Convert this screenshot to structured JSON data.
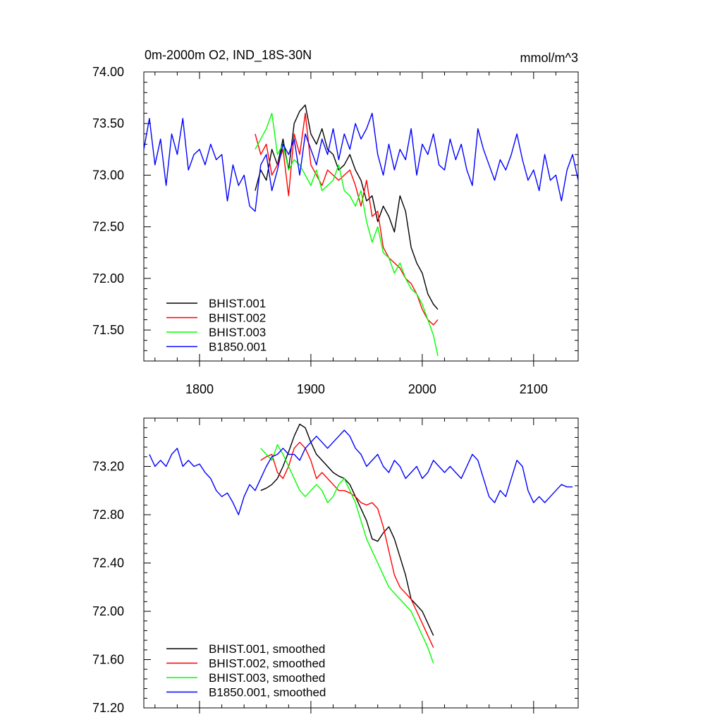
{
  "chart_data": [
    {
      "type": "line",
      "title_left": "0m-2000m O2, IND_18S-30N",
      "title_right": "mmol/m^3",
      "xlim": [
        1750,
        2140
      ],
      "ylim": [
        71.2,
        74.0
      ],
      "x_ticks": [
        1800,
        1900,
        2000,
        2100
      ],
      "y_ticks": [
        71.5,
        72.0,
        72.5,
        73.0,
        73.5,
        74.0
      ],
      "y_tick_labels": [
        "71.50",
        "72.00",
        "72.50",
        "73.00",
        "73.50",
        "74.00"
      ],
      "x_tick_labels": [
        "1800",
        "1900",
        "2000",
        "2100"
      ],
      "legend_position": "bottom-left",
      "series": [
        {
          "name": "BHIST.001",
          "color": "#000000",
          "x": [
            1850,
            1855,
            1860,
            1865,
            1870,
            1875,
            1880,
            1885,
            1890,
            1895,
            1900,
            1905,
            1910,
            1915,
            1920,
            1925,
            1930,
            1935,
            1940,
            1945,
            1950,
            1955,
            1960,
            1965,
            1970,
            1975,
            1980,
            1985,
            1990,
            1995,
            2000,
            2005,
            2010,
            2014
          ],
          "y": [
            72.85,
            73.05,
            72.95,
            73.25,
            73.1,
            73.35,
            73.05,
            73.5,
            73.62,
            73.68,
            73.4,
            73.3,
            73.45,
            73.25,
            73.2,
            73.05,
            73.1,
            73.2,
            73.05,
            72.95,
            72.75,
            72.8,
            72.55,
            72.7,
            72.6,
            72.45,
            72.8,
            72.65,
            72.3,
            72.15,
            72.05,
            71.85,
            71.75,
            71.7
          ]
        },
        {
          "name": "BHIST.002",
          "color": "#ff0000",
          "x": [
            1850,
            1855,
            1860,
            1865,
            1870,
            1875,
            1880,
            1885,
            1890,
            1895,
            1900,
            1905,
            1910,
            1915,
            1920,
            1925,
            1930,
            1935,
            1940,
            1945,
            1950,
            1955,
            1960,
            1965,
            1970,
            1975,
            1980,
            1985,
            1990,
            1995,
            2000,
            2005,
            2010,
            2014
          ],
          "y": [
            73.4,
            73.2,
            73.3,
            73.0,
            73.1,
            73.25,
            72.8,
            73.4,
            73.2,
            73.6,
            73.1,
            73.0,
            72.9,
            73.05,
            73.0,
            72.95,
            73.0,
            73.05,
            72.9,
            72.7,
            72.95,
            72.6,
            72.65,
            72.3,
            72.2,
            72.15,
            72.1,
            72.0,
            71.95,
            71.85,
            71.7,
            71.6,
            71.55,
            71.6
          ]
        },
        {
          "name": "BHIST.003",
          "color": "#00ff00",
          "x": [
            1850,
            1855,
            1860,
            1865,
            1870,
            1875,
            1880,
            1885,
            1890,
            1895,
            1900,
            1905,
            1910,
            1915,
            1920,
            1925,
            1930,
            1935,
            1940,
            1945,
            1950,
            1955,
            1960,
            1965,
            1970,
            1975,
            1980,
            1985,
            1990,
            1995,
            2000,
            2005,
            2010,
            2014
          ],
          "y": [
            73.25,
            73.35,
            73.45,
            73.6,
            73.2,
            73.3,
            73.05,
            73.15,
            73.1,
            73.0,
            72.9,
            73.05,
            72.85,
            72.9,
            72.95,
            73.1,
            72.85,
            72.8,
            72.7,
            72.85,
            72.55,
            72.35,
            72.5,
            72.25,
            72.2,
            72.05,
            72.15,
            72.0,
            71.9,
            71.85,
            71.75,
            71.6,
            71.45,
            71.25
          ]
        },
        {
          "name": "B1850.001",
          "color": "#0000ff",
          "x": [
            1750,
            1755,
            1760,
            1765,
            1770,
            1775,
            1780,
            1785,
            1790,
            1795,
            1800,
            1805,
            1810,
            1815,
            1820,
            1825,
            1830,
            1835,
            1840,
            1845,
            1850,
            1855,
            1860,
            1865,
            1870,
            1875,
            1880,
            1885,
            1890,
            1895,
            1900,
            1905,
            1910,
            1915,
            1920,
            1925,
            1930,
            1935,
            1940,
            1945,
            1950,
            1955,
            1960,
            1965,
            1970,
            1975,
            1980,
            1985,
            1990,
            1995,
            2000,
            2005,
            2010,
            2015,
            2020,
            2025,
            2030,
            2035,
            2040,
            2045,
            2050,
            2055,
            2060,
            2065,
            2070,
            2075,
            2080,
            2085,
            2090,
            2095,
            2100,
            2105,
            2110,
            2115,
            2120,
            2125,
            2130,
            2135,
            2140
          ],
          "y": [
            73.25,
            73.55,
            73.1,
            73.35,
            72.9,
            73.4,
            73.2,
            73.55,
            73.05,
            73.2,
            73.25,
            73.1,
            73.3,
            73.15,
            73.2,
            72.75,
            73.1,
            72.9,
            73.0,
            72.7,
            72.65,
            73.1,
            73.2,
            72.85,
            73.05,
            73.3,
            73.2,
            73.35,
            73.0,
            73.4,
            73.25,
            73.1,
            73.35,
            73.2,
            73.45,
            73.15,
            73.4,
            73.25,
            73.5,
            73.35,
            73.45,
            73.6,
            73.2,
            73.0,
            73.3,
            73.05,
            73.25,
            73.15,
            73.45,
            73.0,
            73.3,
            73.2,
            73.4,
            73.1,
            73.05,
            73.35,
            73.15,
            73.3,
            73.05,
            72.9,
            73.45,
            73.25,
            73.1,
            72.95,
            73.15,
            73.05,
            73.2,
            73.4,
            73.15,
            72.95,
            73.05,
            72.85,
            73.2,
            72.95,
            73.0,
            72.75,
            73.05,
            73.2,
            72.95
          ]
        }
      ]
    },
    {
      "type": "line",
      "xlim": [
        1750,
        2140
      ],
      "ylim": [
        71.2,
        73.6
      ],
      "x_ticks": [
        1800,
        1900,
        2000,
        2100
      ],
      "y_ticks": [
        71.2,
        71.6,
        72.0,
        72.4,
        72.8,
        73.2
      ],
      "y_tick_labels": [
        "71.20",
        "71.60",
        "72.00",
        "72.40",
        "72.80",
        "73.20"
      ],
      "legend_position": "bottom-left",
      "series": [
        {
          "name": "BHIST.001, smoothed",
          "color": "#000000",
          "x": [
            1855,
            1860,
            1865,
            1870,
            1875,
            1880,
            1885,
            1890,
            1895,
            1900,
            1905,
            1910,
            1915,
            1920,
            1925,
            1930,
            1935,
            1940,
            1945,
            1950,
            1955,
            1960,
            1965,
            1970,
            1975,
            1980,
            1985,
            1990,
            1995,
            2000,
            2005,
            2010
          ],
          "y": [
            73.0,
            73.02,
            73.05,
            73.1,
            73.2,
            73.32,
            73.45,
            73.55,
            73.52,
            73.4,
            73.3,
            73.25,
            73.2,
            73.15,
            73.12,
            73.1,
            73.05,
            72.95,
            72.85,
            72.75,
            72.6,
            72.58,
            72.65,
            72.7,
            72.6,
            72.45,
            72.3,
            72.1,
            72.05,
            72.0,
            71.9,
            71.8
          ]
        },
        {
          "name": "BHIST.002, smoothed",
          "color": "#ff0000",
          "x": [
            1855,
            1860,
            1865,
            1870,
            1875,
            1880,
            1885,
            1890,
            1895,
            1900,
            1905,
            1910,
            1915,
            1920,
            1925,
            1930,
            1935,
            1940,
            1945,
            1950,
            1955,
            1960,
            1965,
            1970,
            1975,
            1980,
            1985,
            1990,
            1995,
            2000,
            2005,
            2010
          ],
          "y": [
            73.25,
            73.28,
            73.3,
            73.15,
            73.1,
            73.2,
            73.35,
            73.4,
            73.35,
            73.25,
            73.1,
            73.15,
            73.1,
            73.05,
            73.0,
            73.0,
            72.98,
            72.95,
            72.9,
            72.88,
            72.9,
            72.85,
            72.7,
            72.5,
            72.3,
            72.2,
            72.15,
            72.1,
            72.0,
            71.9,
            71.8,
            71.7
          ]
        },
        {
          "name": "BHIST.003, smoothed",
          "color": "#00ff00",
          "x": [
            1855,
            1860,
            1865,
            1870,
            1875,
            1880,
            1885,
            1890,
            1895,
            1900,
            1905,
            1910,
            1915,
            1920,
            1925,
            1930,
            1935,
            1940,
            1945,
            1950,
            1955,
            1960,
            1965,
            1970,
            1975,
            1980,
            1985,
            1990,
            1995,
            2000,
            2005,
            2010
          ],
          "y": [
            73.35,
            73.3,
            73.25,
            73.38,
            73.3,
            73.2,
            73.1,
            73.0,
            72.95,
            73.0,
            73.05,
            73.0,
            72.9,
            72.95,
            73.05,
            73.1,
            73.0,
            72.9,
            72.75,
            72.6,
            72.5,
            72.4,
            72.3,
            72.2,
            72.15,
            72.1,
            72.05,
            72.0,
            71.9,
            71.8,
            71.7,
            71.57
          ]
        },
        {
          "name": "B1850.001, smoothed",
          "color": "#0000ff",
          "x": [
            1755,
            1760,
            1765,
            1770,
            1775,
            1780,
            1785,
            1790,
            1795,
            1800,
            1805,
            1810,
            1815,
            1820,
            1825,
            1830,
            1835,
            1840,
            1845,
            1850,
            1855,
            1860,
            1865,
            1870,
            1875,
            1880,
            1885,
            1890,
            1895,
            1900,
            1905,
            1910,
            1915,
            1920,
            1925,
            1930,
            1935,
            1940,
            1945,
            1950,
            1955,
            1960,
            1965,
            1970,
            1975,
            1980,
            1985,
            1990,
            1995,
            2000,
            2005,
            2010,
            2015,
            2020,
            2025,
            2030,
            2035,
            2040,
            2045,
            2050,
            2055,
            2060,
            2065,
            2070,
            2075,
            2080,
            2085,
            2090,
            2095,
            2100,
            2105,
            2110,
            2115,
            2120,
            2125,
            2130,
            2135
          ],
          "y": [
            73.3,
            73.2,
            73.25,
            73.2,
            73.3,
            73.35,
            73.2,
            73.25,
            73.2,
            73.22,
            73.15,
            73.1,
            73.0,
            72.95,
            72.98,
            72.9,
            72.8,
            72.95,
            73.05,
            73.0,
            73.1,
            73.2,
            73.28,
            73.3,
            73.35,
            73.3,
            73.3,
            73.25,
            73.35,
            73.4,
            73.45,
            73.4,
            73.35,
            73.4,
            73.45,
            73.5,
            73.45,
            73.35,
            73.3,
            73.2,
            73.25,
            73.3,
            73.2,
            73.15,
            73.25,
            73.2,
            73.1,
            73.15,
            73.2,
            73.1,
            73.15,
            73.25,
            73.2,
            73.15,
            73.2,
            73.15,
            73.1,
            73.2,
            73.3,
            73.25,
            73.1,
            72.95,
            72.9,
            73.0,
            72.95,
            73.1,
            73.25,
            73.2,
            73.0,
            72.9,
            72.95,
            72.9,
            72.95,
            73.0,
            73.05,
            73.03,
            73.03
          ]
        }
      ]
    }
  ]
}
